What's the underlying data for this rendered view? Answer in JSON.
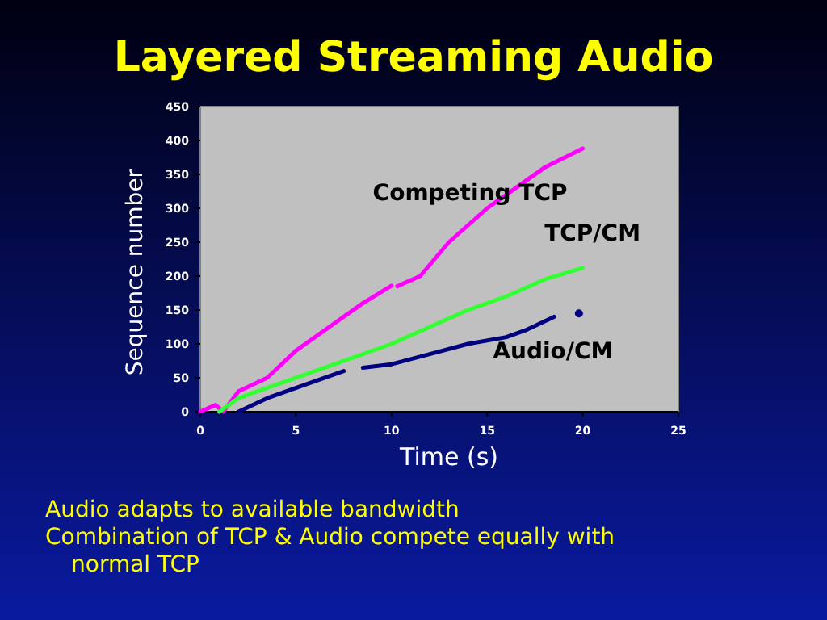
{
  "chart_data": {
    "type": "line",
    "title": "Layered Streaming Audio",
    "xlabel": "Time (s)",
    "ylabel": "Sequence number",
    "xlim": [
      0,
      25
    ],
    "xticks": [
      0,
      5,
      10,
      15,
      20,
      25
    ],
    "ylim": [
      0,
      450
    ],
    "yticks": [
      0,
      50,
      100,
      150,
      200,
      250,
      300,
      350,
      400,
      450
    ],
    "grid": false,
    "marker": "none",
    "line_style": "solid",
    "series": [
      {
        "name": "Competing TCP",
        "color": "#ff00ff",
        "x": [
          0,
          0.8,
          1.2,
          2,
          3.5,
          5,
          7,
          8.5,
          10,
          10.05,
          10.3,
          11.5,
          13,
          15,
          17,
          18,
          20
        ],
        "values": [
          0,
          10,
          0,
          30,
          50,
          90,
          130,
          160,
          186,
          null,
          185,
          200,
          250,
          300,
          340,
          360,
          388
        ]
      },
      {
        "name": "TCP/CM",
        "color": "#33ff33",
        "x": [
          1,
          2,
          4,
          6,
          8,
          10,
          12,
          14,
          16,
          18,
          20
        ],
        "values": [
          0,
          20,
          40,
          60,
          80,
          100,
          125,
          150,
          170,
          195,
          212
        ]
      },
      {
        "name": "Audio/CM",
        "color": "#000080",
        "x": [
          2,
          3.5,
          5.5,
          7.5,
          7.8,
          8.5,
          10,
          12,
          14,
          16,
          17,
          18.5,
          18.6,
          19.8
        ],
        "values": [
          0,
          20,
          40,
          60,
          null,
          65,
          70,
          85,
          100,
          110,
          120,
          140,
          null,
          145
        ]
      }
    ],
    "annotations": [
      "Audio adapts to available bandwidth",
      "Combination of TCP & Audio compete equally with normal TCP"
    ]
  }
}
